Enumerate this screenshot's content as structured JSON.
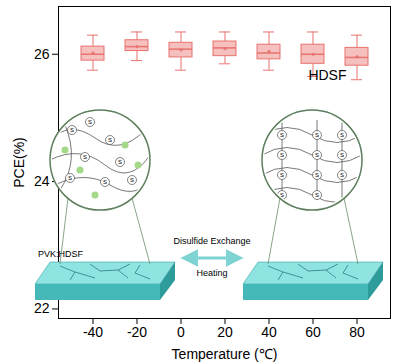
{
  "chart_data": {
    "type": "box",
    "x_label": "Temperature (℃)",
    "y_label": "PCE(%)",
    "categories": [
      -40,
      -20,
      0,
      20,
      40,
      60,
      80
    ],
    "series": [
      {
        "name": "HDSF",
        "color": "#e8736f",
        "min": [
          25.75,
          25.9,
          25.75,
          25.85,
          25.75,
          25.65,
          25.6
        ],
        "q1": [
          25.9,
          26.05,
          25.95,
          25.97,
          25.92,
          25.85,
          25.82
        ],
        "median": [
          26.0,
          26.12,
          26.08,
          26.1,
          26.02,
          26.0,
          25.95
        ],
        "q3": [
          26.12,
          26.22,
          26.18,
          26.2,
          26.15,
          26.15,
          26.1
        ],
        "max": [
          26.3,
          26.35,
          26.35,
          26.35,
          26.35,
          26.35,
          26.3
        ],
        "mean": [
          26.02,
          26.12,
          26.07,
          26.09,
          26.04,
          26.0,
          25.96
        ]
      }
    ],
    "ylim": [
      21.85,
      26.75
    ],
    "yticks": [
      22,
      24,
      26
    ],
    "legend": "top-right",
    "illustration": {
      "substrate_label": "PVK:HDSF",
      "arrow_top": "Disulfide Exchange",
      "arrow_bottom": "Heating",
      "atom": "S"
    }
  }
}
